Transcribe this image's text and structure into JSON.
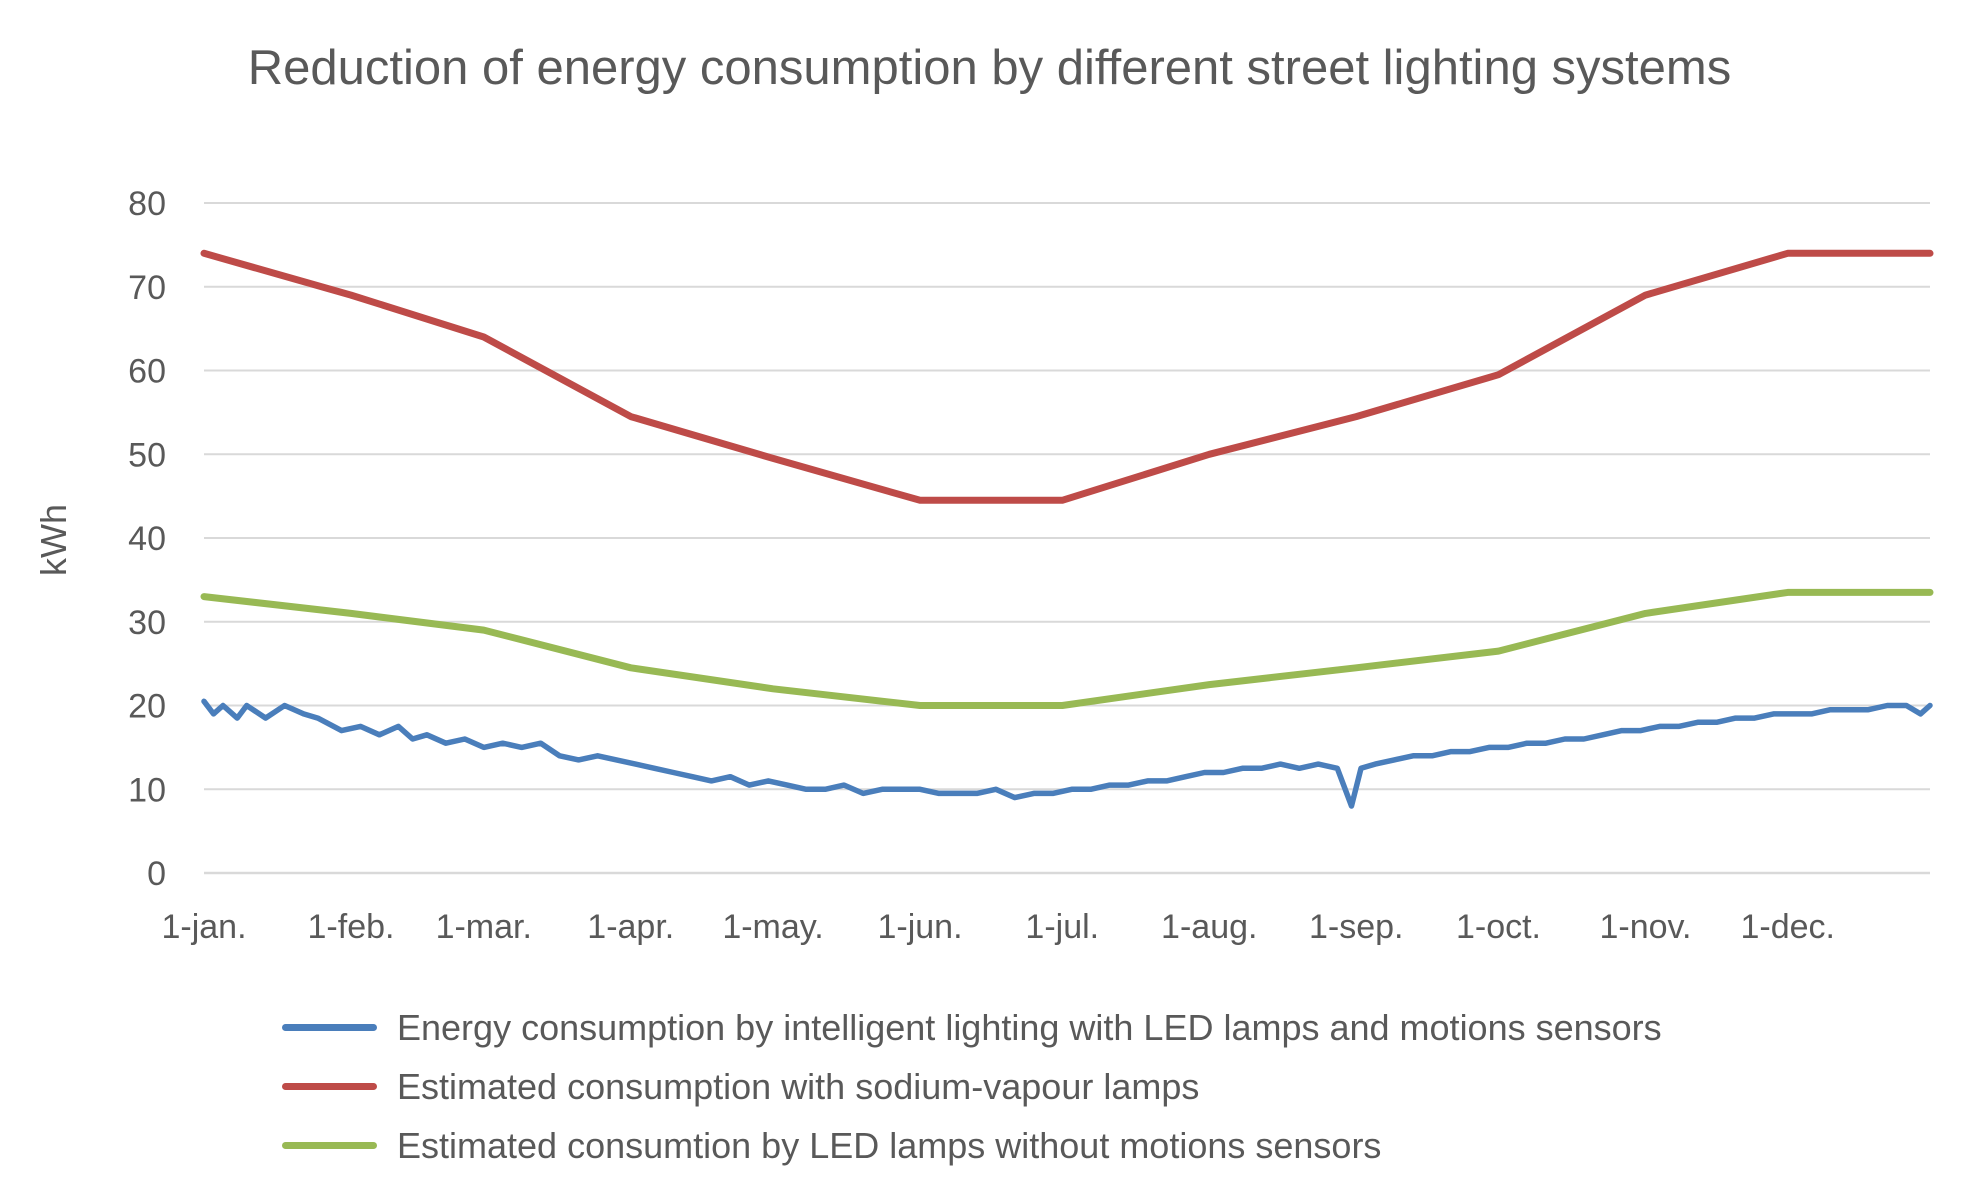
{
  "chart_data": {
    "type": "line",
    "title": "Reduction of energy consumption by different street lighting systems",
    "xlabel": "",
    "ylabel": "kWh",
    "ylim": [
      0,
      80
    ],
    "yticks": [
      0,
      10,
      20,
      30,
      40,
      50,
      60,
      70,
      80
    ],
    "x_tick_labels": [
      "1-jan.",
      "1-feb.",
      "1-mar.",
      "1-apr.",
      "1-may.",
      "1-jun.",
      "1-jul.",
      "1-aug.",
      "1-sep.",
      "1-oct.",
      "1-nov.",
      "1-dec."
    ],
    "x_range_days": [
      1,
      365
    ],
    "grid": true,
    "legend_position": "bottom",
    "series": [
      {
        "name": "Energy consumption by intelligent lighting with LED lamps and motions sensors",
        "color": "#4a7ebb",
        "x": [
          1,
          3,
          5,
          8,
          10,
          14,
          18,
          22,
          25,
          30,
          34,
          38,
          42,
          45,
          48,
          52,
          56,
          60,
          64,
          68,
          72,
          76,
          80,
          84,
          88,
          92,
          96,
          100,
          104,
          108,
          112,
          116,
          120,
          124,
          128,
          132,
          136,
          140,
          144,
          148,
          152,
          156,
          160,
          164,
          168,
          172,
          176,
          180,
          184,
          188,
          192,
          196,
          200,
          204,
          208,
          212,
          216,
          220,
          224,
          228,
          232,
          236,
          240,
          243,
          245,
          248,
          252,
          256,
          260,
          264,
          268,
          272,
          276,
          280,
          284,
          288,
          292,
          296,
          300,
          304,
          308,
          312,
          316,
          320,
          324,
          328,
          332,
          336,
          340,
          344,
          348,
          352,
          356,
          360,
          363,
          365
        ],
        "y": [
          20.5,
          19,
          20,
          18.5,
          20,
          18.5,
          20,
          19,
          18.5,
          17,
          17.5,
          16.5,
          17.5,
          16,
          16.5,
          15.5,
          16,
          15,
          15.5,
          15,
          15.5,
          14,
          13.5,
          14,
          13.5,
          13,
          12.5,
          12,
          11.5,
          11,
          11.5,
          10.5,
          11,
          10.5,
          10,
          10,
          10.5,
          9.5,
          10,
          10,
          10,
          9.5,
          9.5,
          9.5,
          10,
          9,
          9.5,
          9.5,
          10,
          10,
          10.5,
          10.5,
          11,
          11,
          11.5,
          12,
          12,
          12.5,
          12.5,
          13,
          12.5,
          13,
          12.5,
          8,
          12.5,
          13,
          13.5,
          14,
          14,
          14.5,
          14.5,
          15,
          15,
          15.5,
          15.5,
          16,
          16,
          16.5,
          17,
          17,
          17.5,
          17.5,
          18,
          18,
          18.5,
          18.5,
          19,
          19,
          19,
          19.5,
          19.5,
          19.5,
          20,
          20,
          19,
          20
        ]
      },
      {
        "name": "Estimated consumption with sodium-vapour lamps",
        "color": "#be4b48",
        "x": [
          1,
          32,
          60,
          91,
          121,
          152,
          182,
          213,
          244,
          274,
          305,
          335,
          365
        ],
        "y": [
          74,
          69,
          64,
          54.5,
          49.5,
          44.5,
          44.5,
          50,
          54.5,
          59.5,
          69,
          74,
          74
        ]
      },
      {
        "name": "Estimated consumtion by LED lamps without motions sensors",
        "color": "#98b954",
        "x": [
          1,
          32,
          60,
          91,
          121,
          152,
          182,
          213,
          244,
          274,
          305,
          335,
          365
        ],
        "y": [
          33,
          31,
          29,
          24.5,
          22,
          20,
          20,
          22.5,
          24.5,
          26.5,
          31,
          33.5,
          33.5
        ]
      }
    ]
  }
}
